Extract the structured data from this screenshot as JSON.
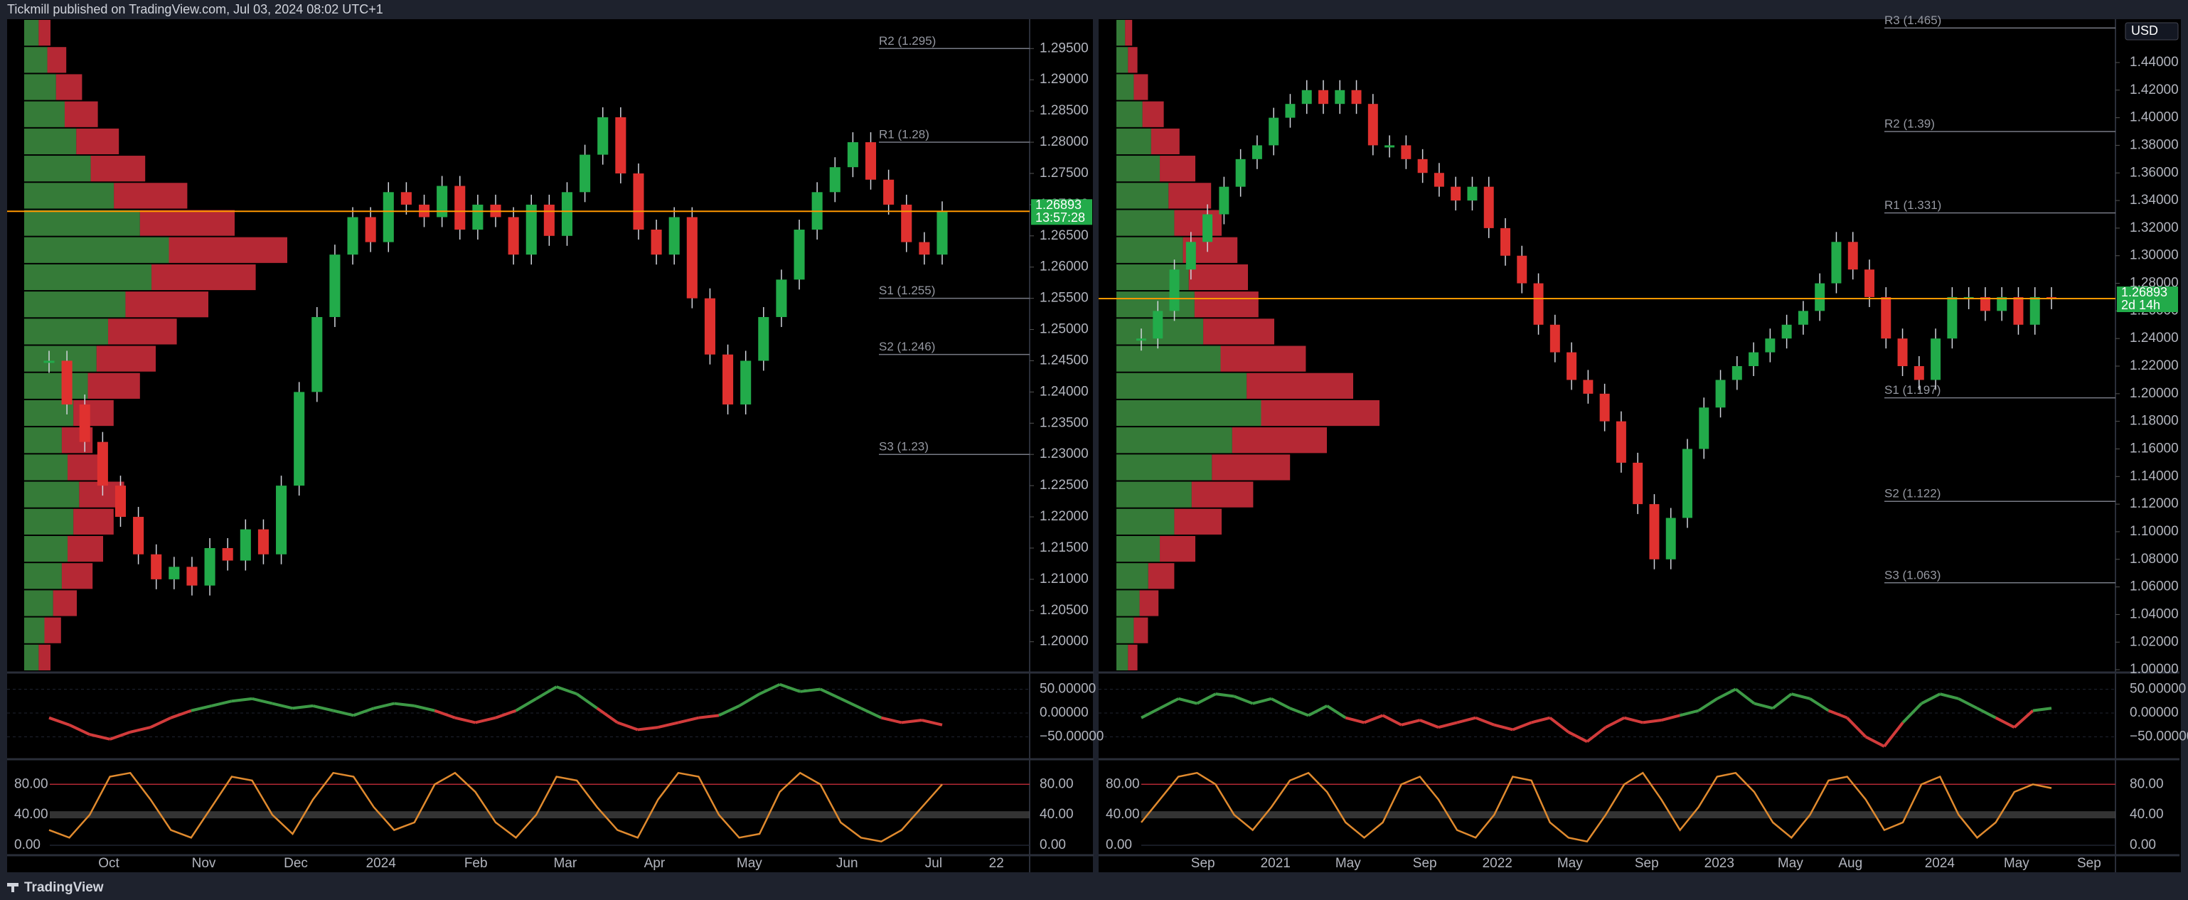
{
  "header": {
    "title": "Tickmill published on TradingView.com, Jul 03, 2024 08:02 UTC+1"
  },
  "footer": {
    "brand": "TradingView"
  },
  "panels": [
    {
      "price_axis": {
        "ylim": [
          1.1953,
          1.2997
        ],
        "ticks": [
          {
            "value": 1.2,
            "label": "1.20000"
          },
          {
            "value": 1.205,
            "label": "1.20500"
          },
          {
            "value": 1.21,
            "label": "1.21000"
          },
          {
            "value": 1.215,
            "label": "1.21500"
          },
          {
            "value": 1.22,
            "label": "1.22000"
          },
          {
            "value": 1.225,
            "label": "1.22500"
          },
          {
            "value": 1.23,
            "label": "1.23000"
          },
          {
            "value": 1.235,
            "label": "1.23500"
          },
          {
            "value": 1.24,
            "label": "1.24000"
          },
          {
            "value": 1.245,
            "label": "1.24500"
          },
          {
            "value": 1.25,
            "label": "1.25000"
          },
          {
            "value": 1.255,
            "label": "1.25500"
          },
          {
            "value": 1.26,
            "label": "1.26000"
          },
          {
            "value": 1.265,
            "label": "1.26500"
          },
          {
            "value": 1.27,
            "label": "1.27000"
          },
          {
            "value": 1.275,
            "label": "1.27500"
          },
          {
            "value": 1.28,
            "label": "1.28000"
          },
          {
            "value": 1.285,
            "label": "1.28500"
          },
          {
            "value": 1.29,
            "label": "1.29000"
          },
          {
            "value": 1.295,
            "label": "1.29500"
          }
        ]
      },
      "pivots": [
        {
          "label": "R2 (1.295)",
          "value": 1.295
        },
        {
          "label": "R1 (1.28)",
          "value": 1.28
        },
        {
          "label": "S1 (1.255)",
          "value": 1.255
        },
        {
          "label": "S2 (1.246)",
          "value": 1.246
        },
        {
          "label": "S3 (1.23)",
          "value": 1.23
        }
      ],
      "last_price": {
        "value": 1.26893,
        "label": "1.26893",
        "timer": "13:57:28"
      },
      "closes": [
        1.245,
        1.238,
        1.232,
        1.225,
        1.22,
        1.214,
        1.21,
        1.212,
        1.209,
        1.215,
        1.213,
        1.218,
        1.214,
        1.225,
        1.24,
        1.252,
        1.262,
        1.268,
        1.264,
        1.272,
        1.27,
        1.268,
        1.273,
        1.266,
        1.27,
        1.268,
        1.262,
        1.27,
        1.265,
        1.272,
        1.278,
        1.284,
        1.275,
        1.266,
        1.262,
        1.268,
        1.255,
        1.246,
        1.238,
        1.245,
        1.252,
        1.258,
        1.266,
        1.272,
        1.276,
        1.28,
        1.274,
        1.27,
        1.264,
        1.262,
        1.26893
      ],
      "volume_profile": [
        10,
        14,
        20,
        26,
        30,
        34,
        38,
        30,
        26,
        34,
        44,
        50,
        58,
        70,
        88,
        100,
        80,
        62,
        46,
        36,
        28,
        22,
        16,
        10
      ],
      "oscillator": {
        "ylim": [
          -94,
          82
        ],
        "ticks": [
          {
            "value": 50,
            "label": "50.00000"
          },
          {
            "value": 0,
            "label": "0.00000"
          },
          {
            "value": -50,
            "label": "−50.00000"
          }
        ],
        "values": [
          -10,
          -25,
          -45,
          -55,
          -40,
          -30,
          -10,
          5,
          15,
          25,
          30,
          20,
          10,
          15,
          5,
          -5,
          10,
          20,
          15,
          5,
          -10,
          -20,
          -10,
          5,
          30,
          55,
          40,
          10,
          -20,
          -35,
          -30,
          -20,
          -10,
          -5,
          15,
          40,
          60,
          45,
          50,
          30,
          10,
          -10,
          -20,
          -15,
          -25
        ]
      },
      "stochastic": {
        "ylim": [
          -13,
          111
        ],
        "ticks": [
          {
            "value": 80,
            "label": "80.00"
          },
          {
            "value": 40,
            "label": "40.00"
          },
          {
            "value": 0,
            "label": "0.00"
          }
        ],
        "values": [
          20,
          10,
          40,
          90,
          95,
          60,
          20,
          10,
          50,
          90,
          85,
          40,
          15,
          60,
          95,
          90,
          50,
          20,
          30,
          80,
          95,
          70,
          30,
          10,
          40,
          90,
          85,
          50,
          20,
          10,
          60,
          95,
          90,
          40,
          10,
          15,
          70,
          95,
          80,
          30,
          10,
          5,
          20,
          50,
          80
        ]
      },
      "time_axis": [
        "Oct",
        "Nov",
        "Dec",
        "2024",
        "Feb",
        "Mar",
        "Apr",
        "May",
        "Jun",
        "Jul",
        "22"
      ]
    },
    {
      "price_axis": {
        "ylim": [
          0.999,
          1.4714
        ],
        "ticks": [
          {
            "value": 1.0,
            "label": "1.00000"
          },
          {
            "value": 1.02,
            "label": "1.02000"
          },
          {
            "value": 1.04,
            "label": "1.04000"
          },
          {
            "value": 1.06,
            "label": "1.06000"
          },
          {
            "value": 1.08,
            "label": "1.08000"
          },
          {
            "value": 1.1,
            "label": "1.10000"
          },
          {
            "value": 1.12,
            "label": "1.12000"
          },
          {
            "value": 1.14,
            "label": "1.14000"
          },
          {
            "value": 1.16,
            "label": "1.16000"
          },
          {
            "value": 1.18,
            "label": "1.18000"
          },
          {
            "value": 1.2,
            "label": "1.20000"
          },
          {
            "value": 1.22,
            "label": "1.22000"
          },
          {
            "value": 1.24,
            "label": "1.24000"
          },
          {
            "value": 1.26,
            "label": "1.26000"
          },
          {
            "value": 1.28,
            "label": "1.28000"
          },
          {
            "value": 1.3,
            "label": "1.30000"
          },
          {
            "value": 1.32,
            "label": "1.32000"
          },
          {
            "value": 1.34,
            "label": "1.34000"
          },
          {
            "value": 1.36,
            "label": "1.36000"
          },
          {
            "value": 1.38,
            "label": "1.38000"
          },
          {
            "value": 1.4,
            "label": "1.40000"
          },
          {
            "value": 1.42,
            "label": "1.42000"
          },
          {
            "value": 1.44,
            "label": "1.44000"
          }
        ]
      },
      "currency": "USD",
      "pivots": [
        {
          "label": "R3 (1.465)",
          "value": 1.465
        },
        {
          "label": "R2 (1.39)",
          "value": 1.39
        },
        {
          "label": "R1 (1.331)",
          "value": 1.331
        },
        {
          "label": "S1 (1.197)",
          "value": 1.197
        },
        {
          "label": "S2 (1.122)",
          "value": 1.122
        },
        {
          "label": "S3 (1.063)",
          "value": 1.063
        }
      ],
      "last_price": {
        "value": 1.26893,
        "label": "1.26893",
        "timer": "2d 14h"
      },
      "closes": [
        1.24,
        1.26,
        1.29,
        1.31,
        1.33,
        1.35,
        1.37,
        1.38,
        1.4,
        1.41,
        1.42,
        1.41,
        1.42,
        1.41,
        1.38,
        1.38,
        1.37,
        1.36,
        1.35,
        1.34,
        1.35,
        1.32,
        1.3,
        1.28,
        1.25,
        1.23,
        1.21,
        1.2,
        1.18,
        1.15,
        1.12,
        1.08,
        1.11,
        1.16,
        1.19,
        1.21,
        1.22,
        1.23,
        1.24,
        1.25,
        1.26,
        1.28,
        1.31,
        1.29,
        1.27,
        1.24,
        1.22,
        1.21,
        1.24,
        1.27,
        1.27,
        1.26,
        1.27,
        1.25,
        1.27,
        1.26893
      ],
      "volume_profile": [
        8,
        12,
        16,
        22,
        30,
        40,
        52,
        66,
        80,
        100,
        90,
        72,
        60,
        54,
        50,
        46,
        40,
        36,
        30,
        24,
        18,
        12,
        8,
        6
      ],
      "oscillator": {
        "ylim": [
          -94,
          82
        ],
        "ticks": [
          {
            "value": 50,
            "label": "50.00000"
          },
          {
            "value": 0,
            "label": "0.00000"
          },
          {
            "value": -50,
            "label": "−50.00000"
          }
        ],
        "values": [
          -10,
          10,
          30,
          20,
          40,
          35,
          20,
          30,
          10,
          -5,
          15,
          -10,
          -20,
          -5,
          -25,
          -15,
          -30,
          -20,
          -10,
          -25,
          -35,
          -20,
          -10,
          -40,
          -60,
          -30,
          -10,
          -20,
          -15,
          -5,
          5,
          30,
          50,
          20,
          10,
          40,
          30,
          5,
          -10,
          -50,
          -70,
          -20,
          20,
          40,
          30,
          10,
          -10,
          -30,
          5,
          10
        ]
      },
      "stochastic": {
        "ylim": [
          -13,
          111
        ],
        "ticks": [
          {
            "value": 80,
            "label": "80.00"
          },
          {
            "value": 40,
            "label": "40.00"
          },
          {
            "value": 0,
            "label": "0.00"
          }
        ],
        "values": [
          30,
          60,
          90,
          95,
          80,
          40,
          20,
          50,
          85,
          95,
          70,
          30,
          10,
          30,
          80,
          90,
          60,
          20,
          10,
          40,
          90,
          85,
          30,
          10,
          5,
          40,
          80,
          95,
          60,
          20,
          50,
          90,
          95,
          70,
          30,
          10,
          40,
          85,
          90,
          60,
          20,
          30,
          80,
          90,
          40,
          10,
          30,
          70,
          80,
          75
        ]
      },
      "time_axis": [
        "Sep",
        "2021",
        "May",
        "Sep",
        "2022",
        "May",
        "Sep",
        "2023",
        "May",
        "Aug",
        "2024",
        "May",
        "Sep"
      ]
    }
  ]
}
